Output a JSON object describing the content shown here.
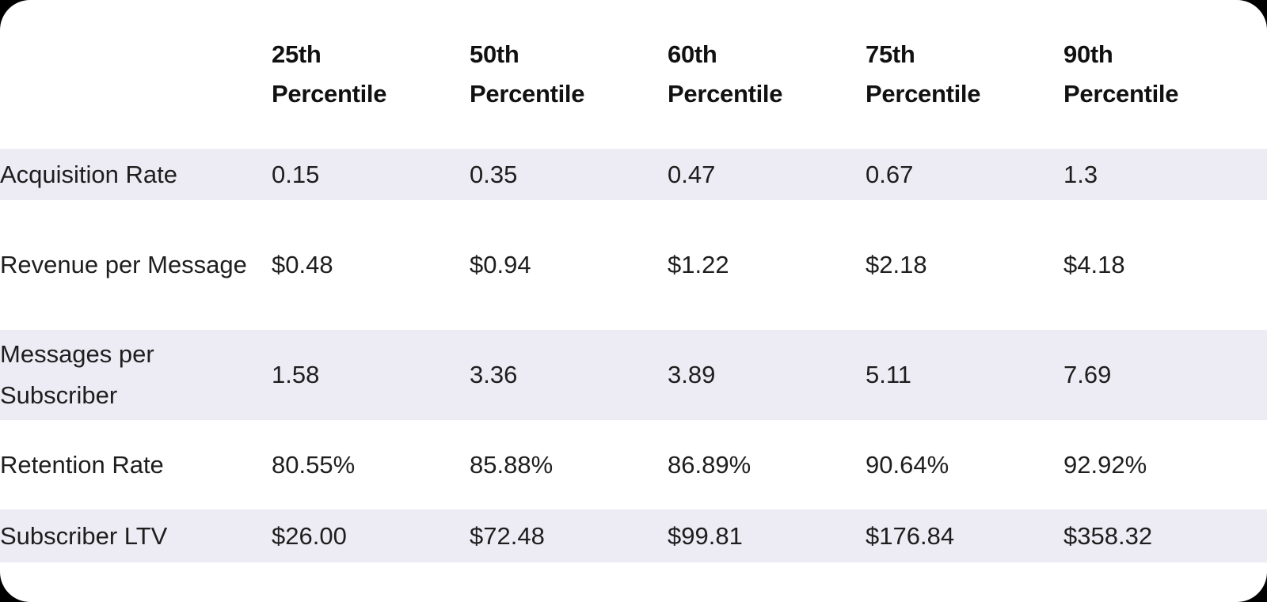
{
  "colors": {
    "page_background": "#000000",
    "card_background": "#FFFFFF",
    "stripe": "#EDECF5",
    "header_text": "#111111",
    "body_text": "#1E1E1E"
  },
  "chart_data": {
    "type": "table",
    "title": "",
    "columns": [
      {
        "label": "25th Percentile",
        "line1": "25th",
        "line2": "Percentile"
      },
      {
        "label": "50th Percentile",
        "line1": "50th",
        "line2": "Percentile"
      },
      {
        "label": "60th Percentile",
        "line1": "60th",
        "line2": "Percentile"
      },
      {
        "label": "75th Percentile",
        "line1": "75th",
        "line2": "Percentile"
      },
      {
        "label": "90th Percentile",
        "line1": "90th",
        "line2": "Percentile"
      }
    ],
    "rows": [
      {
        "label": "Acquisition Rate",
        "values": [
          "0.15",
          "0.35",
          "0.47",
          "0.67",
          "1.3"
        ]
      },
      {
        "label": "Revenue per Message",
        "values": [
          "$0.48",
          "$0.94",
          "$1.22",
          "$2.18",
          "$4.18"
        ]
      },
      {
        "label": "Messages per Subscriber",
        "values": [
          "1.58",
          "3.36",
          "3.89",
          "5.11",
          "7.69"
        ]
      },
      {
        "label": "Retention Rate",
        "values": [
          "80.55%",
          "85.88%",
          "86.89%",
          "90.64%",
          "92.92%"
        ]
      },
      {
        "label": "Subscriber LTV",
        "values": [
          "$26.00",
          "$72.48",
          "$99.81",
          "$176.84",
          "$358.32"
        ]
      }
    ],
    "layout": {
      "striped_rows": "odd",
      "row_header_column": true,
      "grid": false
    }
  }
}
